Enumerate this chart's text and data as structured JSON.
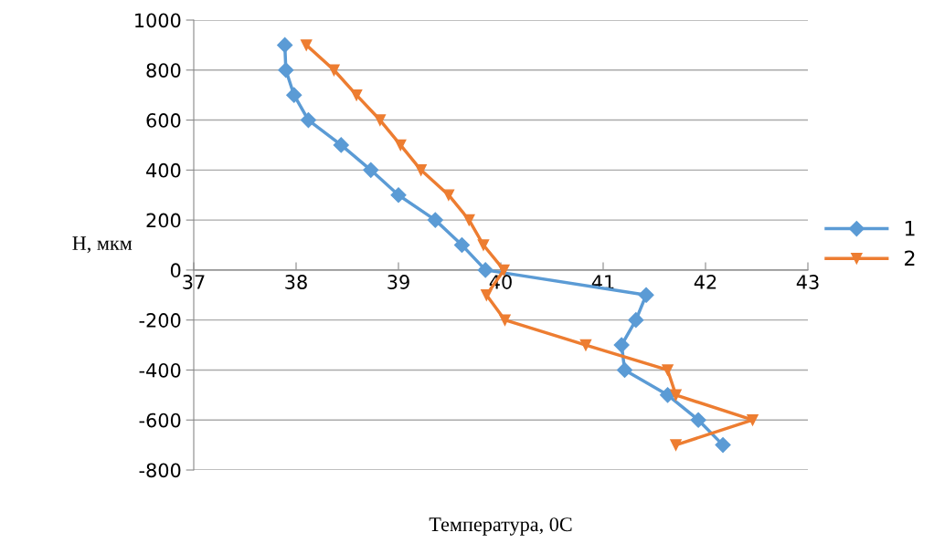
{
  "chart_data": {
    "type": "line",
    "xlabel": "Температура, 0С",
    "ylabel": "H, мкм",
    "xlim": [
      37,
      43
    ],
    "xticks": [
      37,
      38,
      39,
      40,
      41,
      42,
      43
    ],
    "ylim": [
      -800,
      1000
    ],
    "yticks": [
      -800,
      -600,
      -400,
      -200,
      0,
      200,
      400,
      600,
      800,
      1000
    ],
    "grid": "y",
    "legend": "right",
    "line_style": "solid",
    "series": [
      {
        "name": "1",
        "color": "#5b9bd5",
        "marker": "diamond",
        "x": [
          37.89,
          37.9,
          37.98,
          38.12,
          38.44,
          38.73,
          39.0,
          39.36,
          39.62,
          39.85,
          41.42,
          41.32,
          41.18,
          41.21,
          41.63,
          41.93,
          42.17
        ],
        "values": [
          900,
          800,
          700,
          600,
          500,
          400,
          300,
          200,
          100,
          0,
          -100,
          -200,
          -300,
          -400,
          -500,
          -600,
          -700
        ]
      },
      {
        "name": "2",
        "color": "#ed7d31",
        "marker": "triangle",
        "x": [
          38.1,
          38.37,
          38.59,
          38.82,
          39.02,
          39.22,
          39.49,
          39.69,
          39.83,
          40.03,
          39.86,
          40.04,
          40.83,
          41.63,
          41.71,
          42.46,
          41.71
        ],
        "values": [
          900,
          800,
          700,
          600,
          500,
          400,
          300,
          200,
          100,
          0,
          -100,
          -200,
          -300,
          -400,
          -500,
          -600,
          -700
        ]
      }
    ]
  }
}
